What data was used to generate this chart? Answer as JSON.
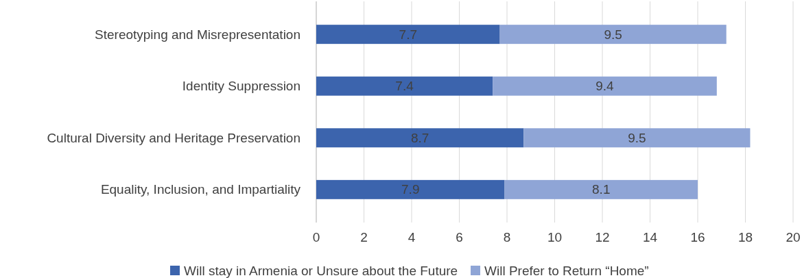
{
  "chart_data": {
    "type": "bar",
    "orientation": "horizontal",
    "stacked": true,
    "categories": [
      "Stereotyping and Misrepresentation",
      "Identity Suppression",
      "Cultural Diversity and Heritage Preservation",
      "Equality, Inclusion, and Impartiality"
    ],
    "series": [
      {
        "name": "Will stay in Armenia or Unsure about the Future",
        "color": "#3c64ad",
        "values": [
          7.7,
          7.4,
          8.7,
          7.9
        ]
      },
      {
        "name": "Will Prefer to Return “Home”",
        "color": "#8fa5d6",
        "values": [
          9.5,
          9.4,
          9.5,
          8.1
        ]
      }
    ],
    "xlim": [
      0,
      20
    ],
    "xticks": [
      0,
      2,
      4,
      6,
      8,
      10,
      12,
      14,
      16,
      18,
      20
    ],
    "grid": "x",
    "legend": "bottom",
    "data_labels": true
  }
}
